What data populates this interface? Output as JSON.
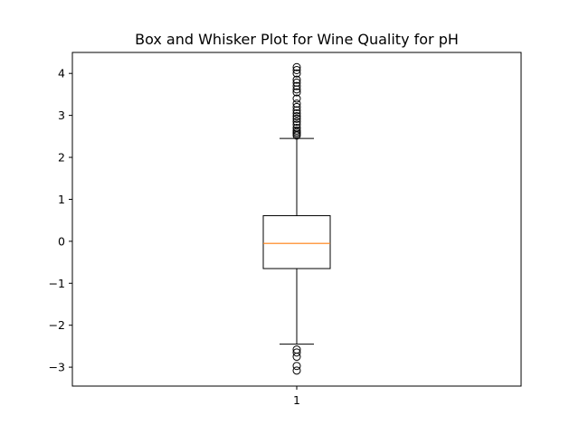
{
  "chart_data": {
    "type": "box",
    "title": "Box and Whisker Plot for Wine Quality for pH",
    "xlabel": "",
    "ylabel": "",
    "ylim": [
      -3.45,
      4.5
    ],
    "yticks": [
      -3,
      -2,
      -1,
      0,
      1,
      2,
      3,
      4
    ],
    "xticks": [
      "1"
    ],
    "grid": false,
    "box": {
      "category": "1",
      "q1": -0.65,
      "median": -0.05,
      "q3": 0.61,
      "whisker_low": -2.45,
      "whisker_high": 2.45,
      "median_color": "#ff7f0e",
      "outliers": [
        2.52,
        2.56,
        2.6,
        2.64,
        2.7,
        2.78,
        2.85,
        2.92,
        2.98,
        3.05,
        3.12,
        3.2,
        3.28,
        3.4,
        3.55,
        3.62,
        3.7,
        3.78,
        3.85,
        4.0,
        4.08,
        4.15,
        -2.58,
        -2.65,
        -2.75,
        -2.97,
        -3.08
      ]
    }
  }
}
